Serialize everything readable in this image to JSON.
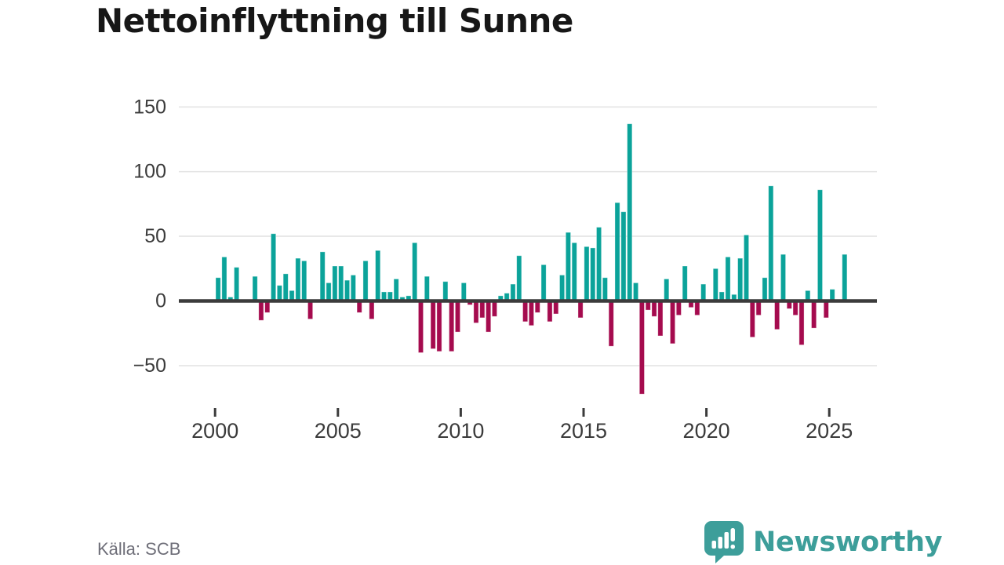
{
  "title": "Nettoinflyttning till Sunne",
  "source": {
    "label": "Källa: SCB"
  },
  "branding": {
    "name": "Newsworthy",
    "color": "#3d9e9a"
  },
  "colors": {
    "positive": "#0ba39a",
    "negative": "#a50b4e",
    "axis": "#3b3b3b",
    "grid": "#e4e4e4",
    "tick_text": "#3b3b3b",
    "muted_text": "#6e6e78",
    "title_text": "#171717",
    "background": "#ffffff"
  },
  "chart_data": {
    "type": "bar",
    "title": "Nettoinflyttning till Sunne",
    "xlabel": "",
    "ylabel": "",
    "grid": "horizontal",
    "legend": "none",
    "ylim": [
      -80,
      160
    ],
    "y_ticks": [
      150,
      100,
      50,
      0,
      -50
    ],
    "y_axis_tick_labels": [
      "150",
      "100",
      "50",
      "0",
      "−50"
    ],
    "x_axis_tick_years": [
      2000,
      2005,
      2010,
      2015,
      2020,
      2025
    ],
    "x_axis_tick_labels": [
      "2000",
      "2005",
      "2010",
      "2015",
      "2020",
      "2025"
    ],
    "x": [
      "2000Q1",
      "2000Q2",
      "2000Q3",
      "2000Q4",
      "2001Q1",
      "2001Q2",
      "2001Q3",
      "2001Q4",
      "2002Q1",
      "2002Q2",
      "2002Q3",
      "2002Q4",
      "2003Q1",
      "2003Q2",
      "2003Q3",
      "2003Q4",
      "2004Q1",
      "2004Q2",
      "2004Q3",
      "2004Q4",
      "2005Q1",
      "2005Q2",
      "2005Q3",
      "2005Q4",
      "2006Q1",
      "2006Q2",
      "2006Q3",
      "2006Q4",
      "2007Q1",
      "2007Q2",
      "2007Q3",
      "2007Q4",
      "2008Q1",
      "2008Q2",
      "2008Q3",
      "2008Q4",
      "2009Q1",
      "2009Q2",
      "2009Q3",
      "2009Q4",
      "2010Q1",
      "2010Q2",
      "2010Q3",
      "2010Q4",
      "2011Q1",
      "2011Q2",
      "2011Q3",
      "2011Q4",
      "2012Q1",
      "2012Q2",
      "2012Q3",
      "2012Q4",
      "2013Q1",
      "2013Q2",
      "2013Q3",
      "2013Q4",
      "2014Q1",
      "2014Q2",
      "2014Q3",
      "2014Q4",
      "2015Q1",
      "2015Q2",
      "2015Q3",
      "2015Q4",
      "2016Q1",
      "2016Q2",
      "2016Q3",
      "2016Q4",
      "2017Q1",
      "2017Q2",
      "2017Q3",
      "2017Q4",
      "2018Q1",
      "2018Q2",
      "2018Q3",
      "2018Q4",
      "2019Q1",
      "2019Q2",
      "2019Q3",
      "2019Q4",
      "2020Q1",
      "2020Q2",
      "2020Q3",
      "2020Q4",
      "2021Q1",
      "2021Q2",
      "2021Q3",
      "2021Q4",
      "2022Q1",
      "2022Q2",
      "2022Q3",
      "2022Q4",
      "2023Q1",
      "2023Q2",
      "2023Q3",
      "2023Q4",
      "2024Q1",
      "2024Q2",
      "2024Q3",
      "2024Q4",
      "2025Q1",
      "2025Q2",
      "2025Q3"
    ],
    "values": [
      18,
      34,
      3,
      26,
      0,
      0,
      19,
      -15,
      -9,
      52,
      12,
      21,
      8,
      33,
      31,
      -14,
      0,
      38,
      14,
      27,
      27,
      16,
      20,
      -9,
      31,
      -14,
      39,
      7,
      7,
      17,
      3,
      4,
      45,
      -40,
      19,
      -37,
      -39,
      15,
      -39,
      -24,
      14,
      -3,
      -17,
      -13,
      -24,
      -12,
      4,
      6,
      13,
      35,
      -16,
      -19,
      -9,
      28,
      -16,
      -10,
      20,
      53,
      45,
      -13,
      42,
      41,
      57,
      18,
      -35,
      76,
      69,
      137,
      14,
      -72,
      -7,
      -12,
      -27,
      17,
      -33,
      -11,
      27,
      -5,
      -11,
      13,
      0,
      25,
      7,
      34,
      5,
      33,
      51,
      -28,
      -11,
      18,
      89,
      -22,
      36,
      -6,
      -11,
      -34,
      8,
      -21,
      86,
      -13,
      9,
      0,
      36
    ]
  }
}
